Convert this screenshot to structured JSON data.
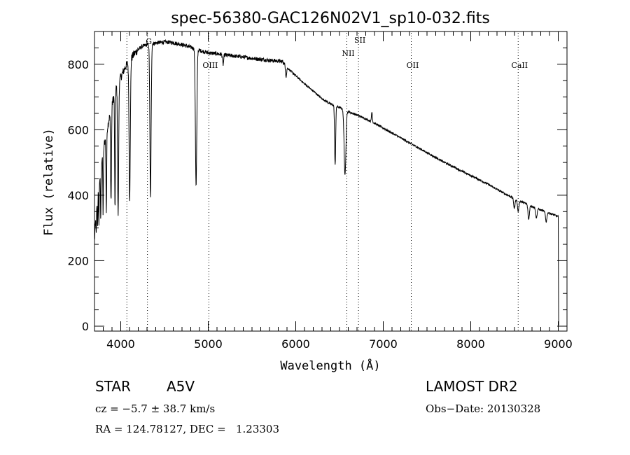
{
  "chart_data": {
    "type": "line",
    "title": "spec-56380-GAC126N02V1_sp10-032.fits",
    "xlabel": "Wavelength (Å)",
    "ylabel": "Flux (relative)",
    "xlim": [
      3700,
      9100
    ],
    "ylim": [
      -15,
      900
    ],
    "x_ticks": [
      4000,
      5000,
      6000,
      7000,
      8000,
      9000
    ],
    "y_ticks": [
      0,
      200,
      400,
      600,
      800
    ],
    "x_tick_labels": [
      "4000",
      "5000",
      "6000",
      "7000",
      "8000",
      "9000"
    ],
    "y_tick_labels": [
      "0",
      "200",
      "400",
      "600",
      "800"
    ],
    "spectrum_anchor_points": {
      "x": [
        3700,
        3720,
        3760,
        3800,
        3850,
        3900,
        3950,
        4000,
        4050,
        4100,
        4150,
        4200,
        4250,
        4300,
        4350,
        4400,
        4500,
        4600,
        4700,
        4800,
        4900,
        5000,
        5100,
        5200,
        5300,
        5400,
        5500,
        5600,
        5700,
        5800,
        5850,
        5900,
        6000,
        6100,
        6200,
        6300,
        6400,
        6500,
        6600,
        6700,
        6800,
        6900,
        7000,
        7100,
        7200,
        7300,
        7400,
        7500,
        7600,
        7700,
        7800,
        7900,
        8000,
        8100,
        8200,
        8300,
        8400,
        8500,
        8600,
        8700,
        8800,
        8900,
        8950,
        9000,
        9005
      ],
      "flux": [
        260,
        360,
        450,
        540,
        610,
        680,
        730,
        760,
        790,
        810,
        830,
        845,
        855,
        860,
        862,
        865,
        868,
        866,
        860,
        852,
        842,
        835,
        832,
        828,
        825,
        822,
        818,
        815,
        812,
        810,
        808,
        790,
        765,
        740,
        718,
        695,
        678,
        668,
        655,
        645,
        633,
        620,
        605,
        590,
        575,
        560,
        545,
        530,
        515,
        500,
        487,
        473,
        460,
        447,
        433,
        418,
        403,
        390,
        378,
        366,
        355,
        345,
        340,
        335,
        0
      ]
    },
    "absorption_lines": [
      {
        "center": 3720,
        "depth": 80,
        "width": 3
      },
      {
        "center": 3735,
        "depth": 90,
        "width": 3
      },
      {
        "center": 3750,
        "depth": 110,
        "width": 3
      },
      {
        "center": 3771,
        "depth": 150,
        "width": 3
      },
      {
        "center": 3798,
        "depth": 190,
        "width": 3.5
      },
      {
        "center": 3835,
        "depth": 240,
        "width": 4
      },
      {
        "center": 3889,
        "depth": 280,
        "width": 5
      },
      {
        "center": 3934,
        "depth": 370,
        "width": 4
      },
      {
        "center": 3970,
        "depth": 400,
        "width": 6
      },
      {
        "center": 4102,
        "depth": 420,
        "width": 7
      },
      {
        "center": 4340,
        "depth": 470,
        "width": 7
      },
      {
        "center": 4861,
        "depth": 420,
        "width": 8
      },
      {
        "center": 5170,
        "depth": 30,
        "width": 6
      },
      {
        "center": 5890,
        "depth": 30,
        "width": 6
      },
      {
        "center": 6450,
        "depth": 180,
        "width": 6
      },
      {
        "center": 6563,
        "depth": 200,
        "width": 10
      },
      {
        "center": 8498,
        "depth": 30,
        "width": 8
      },
      {
        "center": 8542,
        "depth": 35,
        "width": 8
      },
      {
        "center": 8662,
        "depth": 45,
        "width": 8
      },
      {
        "center": 8750,
        "depth": 30,
        "width": 8
      },
      {
        "center": 8862,
        "depth": 30,
        "width": 8
      }
    ],
    "emission_features": [
      {
        "center": 6870,
        "height": 30,
        "width": 5
      }
    ],
    "line_markers": [
      {
        "label": "",
        "wavelength": 4070
      },
      {
        "label": "G",
        "wavelength": 4305
      },
      {
        "label": "OIII",
        "wavelength": 5007
      },
      {
        "label": "NII",
        "wavelength": 6584
      },
      {
        "label": "SII",
        "wavelength": 6717
      },
      {
        "label": "OII",
        "wavelength": 7320
      },
      {
        "label": "CaII",
        "wavelength": 8542
      }
    ]
  },
  "info": {
    "object_class": "STAR",
    "subclass": "A5V",
    "survey": "LAMOST DR2",
    "velocity": "cz = −5.7 ± 38.7 km/s",
    "obs_date": "Obs−Date: 20130328",
    "coords": "RA = 124.78127, DEC =   1.23303"
  }
}
